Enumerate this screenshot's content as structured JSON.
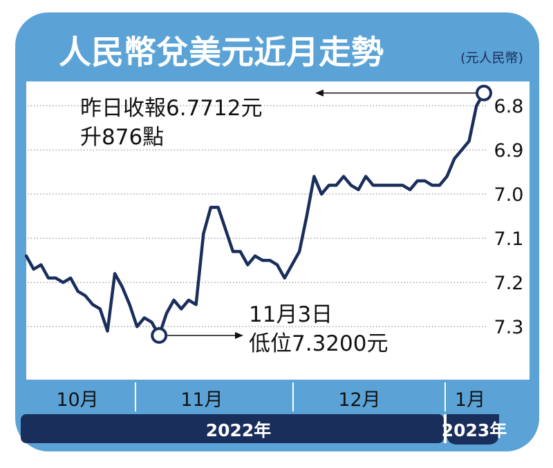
{
  "chart_data": {
    "type": "line",
    "title": "人民幣兌美元近月走勢",
    "unit_label": "(元人民幣)",
    "y_axis": {
      "ticks": [
        6.8,
        6.9,
        7.0,
        7.1,
        7.2,
        7.3
      ],
      "tick_labels": [
        "6.8",
        "6.9",
        "7.0",
        "7.1",
        "7.2",
        "7.3"
      ],
      "ylim": [
        6.745,
        7.42
      ],
      "inverted": true
    },
    "x_axis": {
      "month_labels": [
        "10月",
        "11月",
        "12月",
        "1月"
      ],
      "year_labels": [
        "2022年",
        "2023年"
      ]
    },
    "grid": "horizontal-dotted",
    "series": [
      {
        "values": [
          7.14,
          7.17,
          7.16,
          7.19,
          7.19,
          7.2,
          7.19,
          7.22,
          7.23,
          7.25,
          7.26,
          7.31,
          7.18,
          7.21,
          7.25,
          7.3,
          7.28,
          7.29,
          7.32,
          7.27,
          7.24,
          7.26,
          7.24,
          7.25,
          7.09,
          7.03,
          7.03,
          7.08,
          7.13,
          7.13,
          7.16,
          7.14,
          7.15,
          7.15,
          7.16,
          7.19,
          7.16,
          7.13,
          7.05,
          6.96,
          7.0,
          6.98,
          6.98,
          6.96,
          6.98,
          6.99,
          6.96,
          6.98,
          6.98,
          6.98,
          6.98,
          6.98,
          6.99,
          6.97,
          6.97,
          6.98,
          6.98,
          6.96,
          6.92,
          6.9,
          6.88,
          6.8,
          6.7712
        ]
      }
    ],
    "annotations": [
      {
        "id": "latest",
        "lines": [
          "昨日收報6.7712元",
          "升876點"
        ],
        "value": 6.7712
      },
      {
        "id": "low",
        "lines": [
          "11月3日",
          "低位7.3200元"
        ],
        "value": 7.32
      }
    ],
    "colors": {
      "frame": "#5ba3d6",
      "title_text": "#ffffff",
      "line": "#1a2e5c",
      "grid": "#9a9a9a",
      "year_band": "#1a2e5c",
      "marker_fill": "#ffffff"
    }
  }
}
